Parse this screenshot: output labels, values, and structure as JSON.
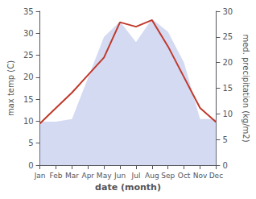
{
  "chart_data": {
    "type": "line",
    "xlabel": "date (month)",
    "ylabel": "max temp (C)",
    "y2label": "med. precipitation (kg/m2)",
    "categories": [
      "Jan",
      "Feb",
      "Mar",
      "Apr",
      "May",
      "Jun",
      "Jul",
      "Aug",
      "Sep",
      "Oct",
      "Nov",
      "Dec"
    ],
    "series": [
      {
        "type": "area",
        "axis": "y2",
        "color": "#b0bce8",
        "values": [
          8.5,
          8.5,
          9.0,
          17.0,
          25.0,
          28.0,
          24.0,
          28.5,
          26.0,
          20.0,
          9.0,
          9.0
        ]
      },
      {
        "type": "line",
        "color": "#c0392b",
        "values": [
          9.5,
          13.0,
          16.5,
          20.5,
          24.5,
          32.5,
          31.5,
          33.0,
          27.0,
          20.0,
          13.0,
          9.8
        ]
      }
    ],
    "ylim": [
      0,
      35
    ],
    "yticks": [
      0,
      5,
      10,
      15,
      20,
      25,
      30,
      35
    ],
    "y2lim": [
      0,
      30
    ],
    "y2ticks": [
      0,
      5,
      10,
      15,
      20,
      25,
      30
    ],
    "grid": false
  }
}
